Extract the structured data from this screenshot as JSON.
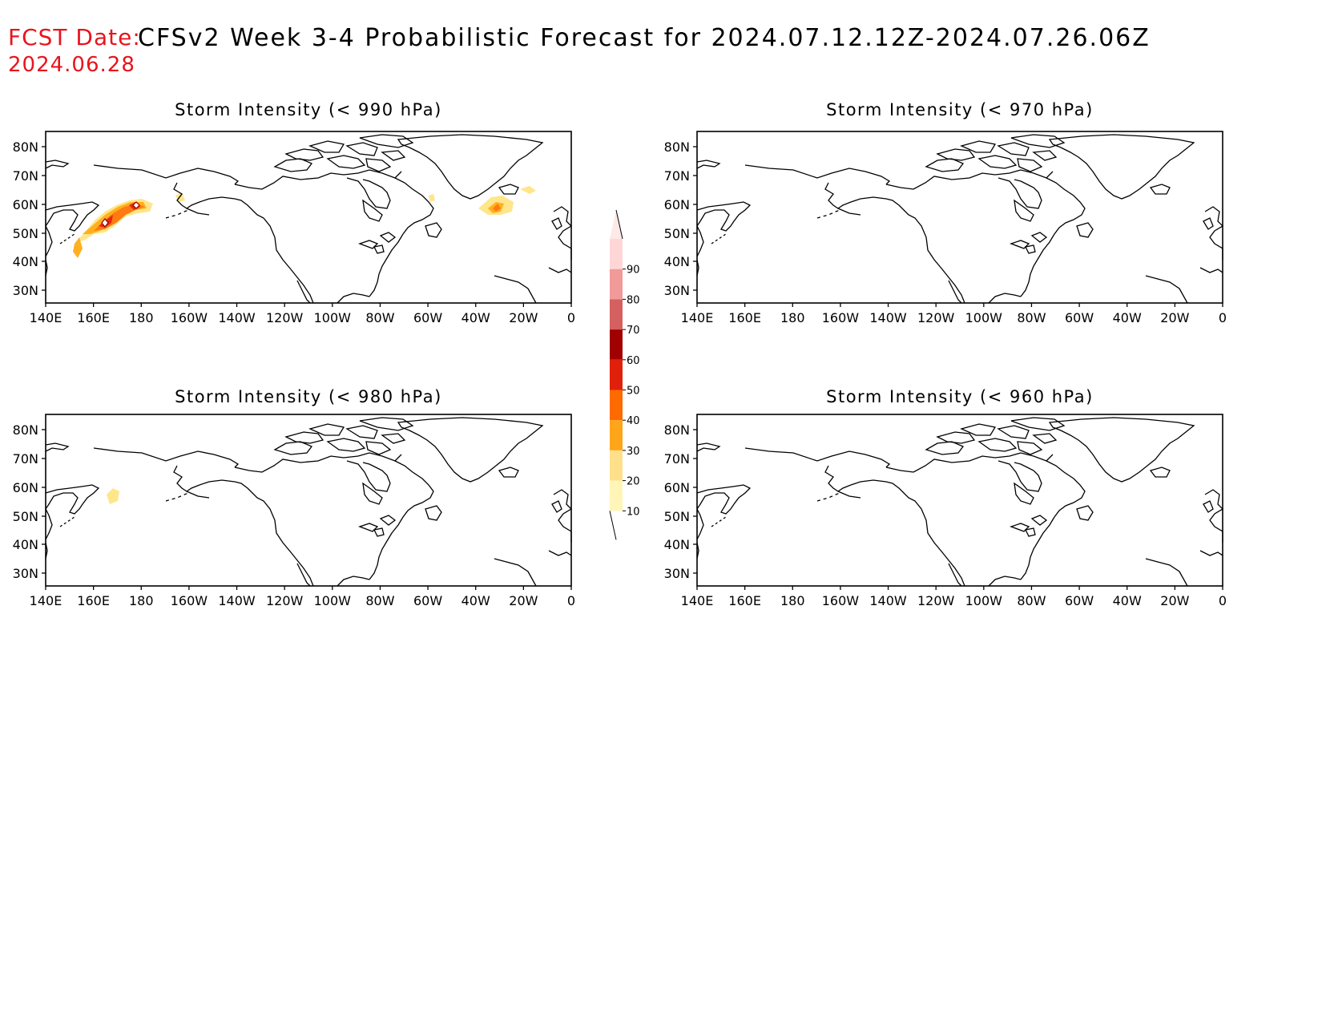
{
  "header": {
    "fcst_label": "FCST Date:",
    "fcst_date": "2024.06.28",
    "title": "CFSv2 Week 3-4 Probabilistic Forecast for 2024.07.12.12Z-2024.07.26.06Z"
  },
  "panels": [
    {
      "title": "Storm Intensity (< 990 hPa)",
      "has_shading": true
    },
    {
      "title": "Storm Intensity (< 970 hPa)",
      "has_shading": false
    },
    {
      "title": "Storm Intensity (< 980 hPa)",
      "has_shading": true
    },
    {
      "title": "Storm Intensity (< 960 hPa)",
      "has_shading": false
    }
  ],
  "lon_labels": [
    "140E",
    "160E",
    "180",
    "160W",
    "140W",
    "120W",
    "100W",
    "80W",
    "60W",
    "40W",
    "20W",
    "0"
  ],
  "lat_labels": [
    "80N",
    "70N",
    "60N",
    "50N",
    "40N",
    "30N"
  ],
  "colorbar": {
    "labels": [
      "10",
      "20",
      "30",
      "40",
      "50",
      "60",
      "70",
      "80",
      "90"
    ],
    "colors": [
      "#fff5b8",
      "#ffe08a",
      "#ffa51a",
      "#ff6a00",
      "#e0200a",
      "#a00000",
      "#d46060",
      "#f09a9a",
      "#ffd6d6"
    ]
  },
  "shading_colors": {
    "light": "#ffe68a",
    "mid": "#ffb020",
    "orange": "#ff7a10",
    "red": "#e02810",
    "dark": "#a00000"
  }
}
